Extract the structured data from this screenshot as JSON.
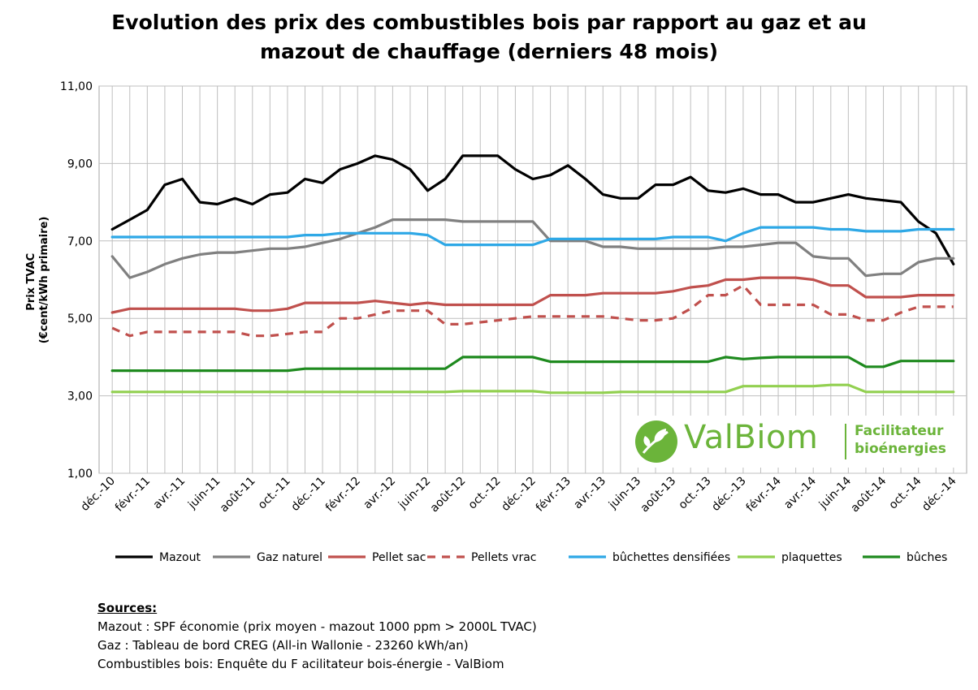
{
  "chart_data": {
    "type": "line",
    "title_line1": "Evolution des prix des combustibles bois par rapport au gaz et au",
    "title_line2": "mazout de chauffage (derniers 48 mois)",
    "ylabel_line1": "Prix TVAC",
    "ylabel_line2": "(€cent/kWh primaire)",
    "ylim": [
      1,
      11
    ],
    "yticks": [
      1,
      3,
      5,
      7,
      9,
      11
    ],
    "ytick_labels": [
      "1,00",
      "3,00",
      "5,00",
      "7,00",
      "9,00",
      "11,00"
    ],
    "grid": true,
    "legend_position": "bottom",
    "x": [
      "déc.-10",
      "janv.-11",
      "févr.-11",
      "mars-11",
      "avr.-11",
      "mai-11",
      "juin-11",
      "juil.-11",
      "août-11",
      "sept.-11",
      "oct.-11",
      "nov.-11",
      "déc.-11",
      "janv.-12",
      "févr.-12",
      "mars-12",
      "avr.-12",
      "mai-12",
      "juin-12",
      "juil.-12",
      "août-12",
      "sept.-12",
      "oct.-12",
      "nov.-12",
      "déc.-12",
      "janv.-13",
      "févr.-13",
      "mars-13",
      "avr.-13",
      "mai-13",
      "juin-13",
      "juil.-13",
      "août-13",
      "sept.-13",
      "oct.-13",
      "nov.-13",
      "déc.-13",
      "janv.-14",
      "févr.-14",
      "mars-14",
      "avr.-14",
      "mai-14",
      "juin-14",
      "juil.-14",
      "août-14",
      "sept.-14",
      "oct.-14",
      "nov.-14",
      "déc.-14"
    ],
    "x_tick_labels": [
      "déc.-10",
      "févr.-11",
      "avr.-11",
      "juin-11",
      "août-11",
      "oct.-11",
      "déc.-11",
      "févr.-12",
      "avr.-12",
      "juin-12",
      "août-12",
      "oct.-12",
      "déc.-12",
      "févr.-13",
      "avr.-13",
      "juin-13",
      "août-13",
      "oct.-13",
      "déc.-13",
      "févr.-14",
      "avr.-14",
      "juin-14",
      "août-14",
      "oct.-14",
      "déc.-14"
    ],
    "series": [
      {
        "name": "Mazout",
        "color": "#000000",
        "dashed": false,
        "values": [
          7.3,
          7.55,
          7.8,
          8.45,
          8.6,
          8.0,
          7.95,
          8.1,
          7.95,
          8.2,
          8.25,
          8.6,
          8.5,
          8.85,
          9.0,
          9.2,
          9.1,
          8.85,
          8.3,
          8.6,
          9.2,
          9.2,
          9.2,
          8.85,
          8.6,
          8.7,
          8.95,
          8.6,
          8.2,
          8.1,
          8.1,
          8.45,
          8.45,
          8.65,
          8.3,
          8.25,
          8.35,
          8.2,
          8.2,
          8.0,
          8.0,
          8.1,
          8.2,
          8.1,
          8.05,
          8.0,
          7.5,
          7.2,
          6.4
        ]
      },
      {
        "name": "Gaz naturel",
        "color": "#808080",
        "dashed": false,
        "values": [
          6.6,
          6.05,
          6.2,
          6.4,
          6.55,
          6.65,
          6.7,
          6.7,
          6.75,
          6.8,
          6.8,
          6.85,
          6.95,
          7.05,
          7.2,
          7.35,
          7.55,
          7.55,
          7.55,
          7.55,
          7.5,
          7.5,
          7.5,
          7.5,
          7.5,
          7.0,
          7.0,
          7.0,
          6.85,
          6.85,
          6.8,
          6.8,
          6.8,
          6.8,
          6.8,
          6.85,
          6.85,
          6.9,
          6.95,
          6.95,
          6.6,
          6.55,
          6.55,
          6.1,
          6.15,
          6.15,
          6.45,
          6.55,
          6.55
        ]
      },
      {
        "name": "Pellet sac",
        "color": "#c0504d",
        "dashed": false,
        "values": [
          5.15,
          5.25,
          5.25,
          5.25,
          5.25,
          5.25,
          5.25,
          5.25,
          5.2,
          5.2,
          5.25,
          5.4,
          5.4,
          5.4,
          5.4,
          5.45,
          5.4,
          5.35,
          5.4,
          5.35,
          5.35,
          5.35,
          5.35,
          5.35,
          5.35,
          5.6,
          5.6,
          5.6,
          5.65,
          5.65,
          5.65,
          5.65,
          5.7,
          5.8,
          5.85,
          6.0,
          6.0,
          6.05,
          6.05,
          6.05,
          6.0,
          5.85,
          5.85,
          5.55,
          5.55,
          5.55,
          5.6,
          5.6,
          5.6
        ]
      },
      {
        "name": "Pellets vrac",
        "color": "#c0504d",
        "dashed": true,
        "values": [
          4.75,
          4.55,
          4.65,
          4.65,
          4.65,
          4.65,
          4.65,
          4.65,
          4.55,
          4.55,
          4.6,
          4.65,
          4.65,
          5.0,
          5.0,
          5.1,
          5.2,
          5.2,
          5.2,
          4.85,
          4.85,
          4.9,
          4.95,
          5.0,
          5.05,
          5.05,
          5.05,
          5.05,
          5.05,
          5.0,
          4.95,
          4.95,
          5.0,
          5.25,
          5.6,
          5.6,
          5.85,
          5.35,
          5.35,
          5.35,
          5.35,
          5.1,
          5.1,
          4.95,
          4.95,
          5.15,
          5.3,
          5.3,
          5.3
        ]
      },
      {
        "name": "bûchettes densifiées",
        "color": "#2ea8e6",
        "dashed": false,
        "values": [
          7.1,
          7.1,
          7.1,
          7.1,
          7.1,
          7.1,
          7.1,
          7.1,
          7.1,
          7.1,
          7.1,
          7.15,
          7.15,
          7.2,
          7.2,
          7.2,
          7.2,
          7.2,
          7.15,
          6.9,
          6.9,
          6.9,
          6.9,
          6.9,
          6.9,
          7.05,
          7.05,
          7.05,
          7.05,
          7.05,
          7.05,
          7.05,
          7.1,
          7.1,
          7.1,
          7.0,
          7.2,
          7.35,
          7.35,
          7.35,
          7.35,
          7.3,
          7.3,
          7.25,
          7.25,
          7.25,
          7.3,
          7.3,
          7.3
        ]
      },
      {
        "name": "plaquettes",
        "color": "#92d050",
        "dashed": false,
        "values": [
          3.1,
          3.1,
          3.1,
          3.1,
          3.1,
          3.1,
          3.1,
          3.1,
          3.1,
          3.1,
          3.1,
          3.1,
          3.1,
          3.1,
          3.1,
          3.1,
          3.1,
          3.1,
          3.1,
          3.1,
          3.12,
          3.12,
          3.12,
          3.12,
          3.12,
          3.08,
          3.08,
          3.08,
          3.08,
          3.1,
          3.1,
          3.1,
          3.1,
          3.1,
          3.1,
          3.1,
          3.25,
          3.25,
          3.25,
          3.25,
          3.25,
          3.28,
          3.28,
          3.1,
          3.1,
          3.1,
          3.1,
          3.1,
          3.1
        ]
      },
      {
        "name": "bûches",
        "color": "#1e8a1e",
        "dashed": false,
        "values": [
          3.65,
          3.65,
          3.65,
          3.65,
          3.65,
          3.65,
          3.65,
          3.65,
          3.65,
          3.65,
          3.65,
          3.7,
          3.7,
          3.7,
          3.7,
          3.7,
          3.7,
          3.7,
          3.7,
          3.7,
          4.0,
          4.0,
          4.0,
          4.0,
          4.0,
          3.88,
          3.88,
          3.88,
          3.88,
          3.88,
          3.88,
          3.88,
          3.88,
          3.88,
          3.88,
          4.0,
          3.95,
          3.98,
          4.0,
          4.0,
          4.0,
          4.0,
          4.0,
          3.75,
          3.75,
          3.9,
          3.9,
          3.9,
          3.9
        ]
      }
    ]
  },
  "logo": {
    "name": "ValBiom",
    "tagline_line1": "Facilitateur",
    "tagline_line2": "bioénergies",
    "color": "#6bb43a"
  },
  "sources": {
    "heading": "Sources:",
    "lines": [
      "Mazout : SPF économie (prix moyen - mazout 1000 ppm > 2000L TVAC)",
      "Gaz : Tableau de bord CREG (All-in Wallonie - 23260 kWh/an)",
      "Combustibles bois: Enquête du F acilitateur bois-énergie - ValBiom"
    ]
  }
}
